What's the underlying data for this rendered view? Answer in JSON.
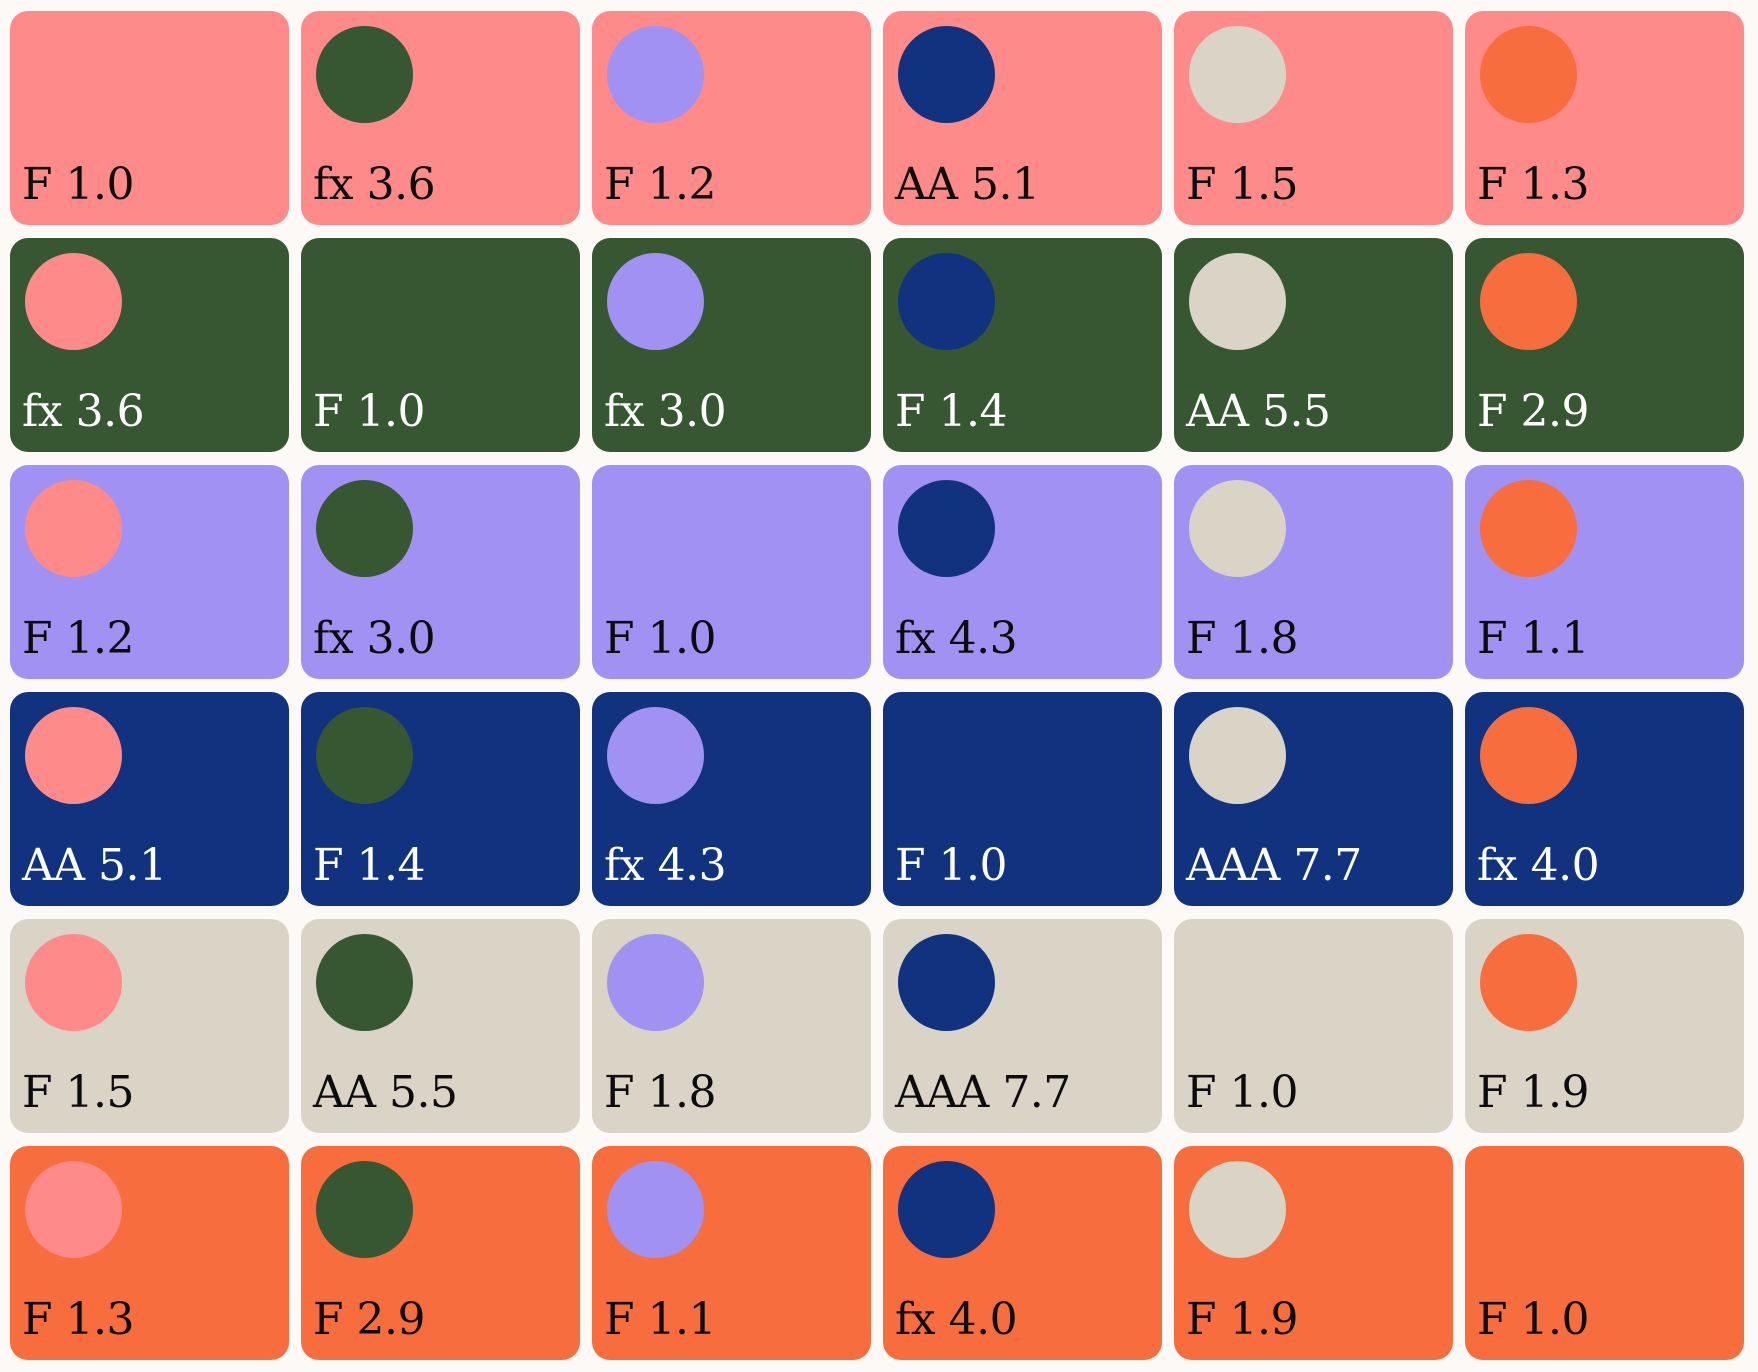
{
  "palette": [
    {
      "name": "salmon",
      "hex": "#ff8a8a"
    },
    {
      "name": "forest",
      "hex": "#375632"
    },
    {
      "name": "lavender",
      "hex": "#a091f2"
    },
    {
      "name": "navy",
      "hex": "#11327e"
    },
    {
      "name": "stone",
      "hex": "#d9d4c6"
    },
    {
      "name": "orange",
      "hex": "#f76d3d"
    }
  ],
  "label_colors": {
    "light": "#0c0c0c",
    "dark": "#ffffff"
  },
  "cells": [
    [
      "F 1.0",
      "fx 3.6",
      "F 1.2",
      "AA 5.1",
      "F 1.5",
      "F 1.3"
    ],
    [
      "fx 3.6",
      "F 1.0",
      "fx 3.0",
      "F 1.4",
      "AA 5.5",
      "F 2.9"
    ],
    [
      "F 1.2",
      "fx 3.0",
      "F 1.0",
      "fx 4.3",
      "F 1.8",
      "F 1.1"
    ],
    [
      "AA 5.1",
      "F 1.4",
      "fx 4.3",
      "F 1.0",
      "AAA 7.7",
      "fx 4.0"
    ],
    [
      "F 1.5",
      "AA 5.5",
      "F 1.8",
      "AAA 7.7",
      "F 1.0",
      "F 1.9"
    ],
    [
      "F 1.3",
      "F 2.9",
      "F 1.1",
      "fx 4.0",
      "F 1.9",
      "F 1.0"
    ]
  ]
}
